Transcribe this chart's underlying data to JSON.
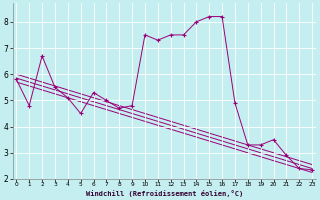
{
  "xlabel": "Windchill (Refroidissement éolien,°C)",
  "bg_color": "#c5eef0",
  "line_color": "#990077",
  "grid_color": "#aadddd",
  "spine_color": "#888888",
  "data_x": [
    0,
    1,
    2,
    3,
    4,
    5,
    6,
    7,
    8,
    9,
    10,
    11,
    12,
    13,
    14,
    15,
    16,
    17,
    18,
    19,
    20,
    21,
    22,
    23
  ],
  "data_y": [
    5.8,
    4.8,
    6.7,
    5.5,
    5.1,
    4.5,
    5.3,
    5.0,
    4.7,
    4.8,
    7.5,
    7.3,
    7.5,
    7.5,
    8.0,
    8.2,
    8.2,
    4.9,
    3.3,
    3.3,
    3.5,
    2.9,
    2.4,
    2.35
  ],
  "trend_lines": [
    {
      "x0": 0,
      "y0": 6.0,
      "x1": 23,
      "y1": 2.55
    },
    {
      "x0": 0,
      "y0": 5.85,
      "x1": 23,
      "y1": 2.4
    },
    {
      "x0": 0,
      "y0": 5.7,
      "x1": 23,
      "y1": 2.25
    }
  ],
  "ylim": [
    2.0,
    8.7
  ],
  "xlim": [
    -0.3,
    23.3
  ],
  "yticks": [
    2,
    3,
    4,
    5,
    6,
    7,
    8
  ],
  "xticks": [
    0,
    1,
    2,
    3,
    4,
    5,
    6,
    7,
    8,
    9,
    10,
    11,
    12,
    13,
    14,
    15,
    16,
    17,
    18,
    19,
    20,
    21,
    22,
    23
  ]
}
